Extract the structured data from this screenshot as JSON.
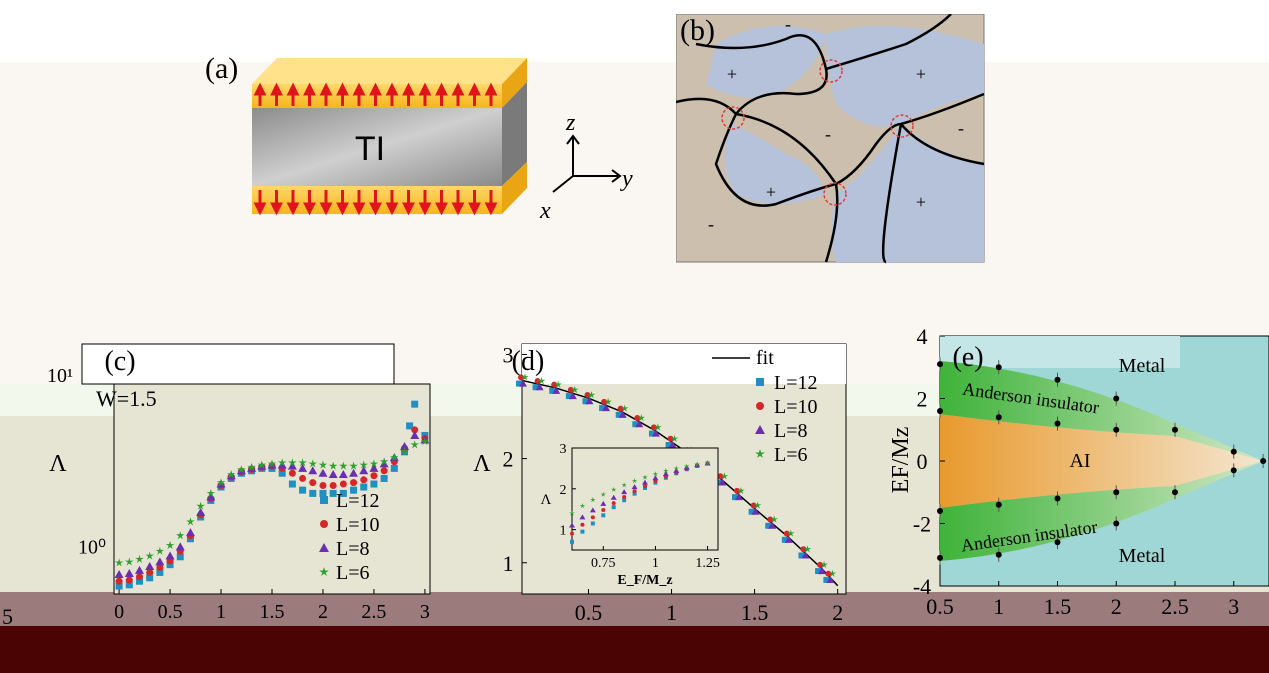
{
  "panel_a": {
    "label": "(a)",
    "block_label": "TI",
    "axes": {
      "z": "z",
      "y": "y",
      "x": "x"
    }
  },
  "panel_b": {
    "label": "(b)",
    "signs": [
      "-",
      "+",
      "+",
      "-",
      "-",
      "+",
      "+",
      "-"
    ]
  },
  "panel_c": {
    "label": "(c)",
    "annotation": "W=1.5",
    "left_clipped_tick": "5",
    "chart_data": {
      "type": "scatter",
      "ylabel": "Λ",
      "yscale": "log",
      "x_ticks": [
        "0",
        "0.5",
        "1",
        "1.5",
        "2",
        "2.5",
        "3"
      ],
      "y_ticks": [
        "10⁰",
        "10¹"
      ],
      "xlim": [
        -0.05,
        3.05
      ],
      "series": [
        {
          "name": "L=12",
          "color": "#1f8fc4",
          "marker": "square",
          "x": [
            0,
            0.1,
            0.2,
            0.3,
            0.4,
            0.5,
            0.6,
            0.7,
            0.8,
            0.9,
            1.0,
            1.1,
            1.2,
            1.3,
            1.4,
            1.5,
            1.6,
            1.7,
            1.8,
            1.9,
            2.0,
            2.1,
            2.2,
            2.3,
            2.4,
            2.5,
            2.6,
            2.7,
            2.8,
            2.85,
            2.9,
            3.0
          ],
          "y": [
            0.56,
            0.57,
            0.6,
            0.63,
            0.68,
            0.76,
            0.85,
            1.1,
            1.5,
            1.9,
            2.3,
            2.6,
            2.8,
            2.9,
            3.0,
            3.0,
            2.8,
            2.4,
            2.2,
            2.1,
            2.1,
            2.1,
            2.1,
            2.2,
            2.3,
            2.4,
            2.6,
            3.0,
            3.8,
            5.5,
            7.5,
            4.8
          ]
        },
        {
          "name": "L=10",
          "color": "#d62728",
          "marker": "circle",
          "x": [
            0,
            0.1,
            0.2,
            0.3,
            0.4,
            0.5,
            0.6,
            0.7,
            0.8,
            0.9,
            1.0,
            1.1,
            1.2,
            1.3,
            1.4,
            1.5,
            1.6,
            1.7,
            1.8,
            1.9,
            2.0,
            2.1,
            2.2,
            2.3,
            2.4,
            2.5,
            2.6,
            2.7,
            2.8,
            2.9,
            3.0
          ],
          "y": [
            0.6,
            0.61,
            0.64,
            0.68,
            0.73,
            0.8,
            0.92,
            1.15,
            1.55,
            1.95,
            2.35,
            2.65,
            2.85,
            2.95,
            3.05,
            3.1,
            3.0,
            2.8,
            2.6,
            2.45,
            2.35,
            2.35,
            2.4,
            2.45,
            2.55,
            2.7,
            2.9,
            3.3,
            4.0,
            5.2,
            4.6
          ]
        },
        {
          "name": "L=8",
          "color": "#6a2fb0",
          "marker": "triangle",
          "x": [
            0,
            0.1,
            0.2,
            0.3,
            0.4,
            0.5,
            0.6,
            0.7,
            0.8,
            0.9,
            1.0,
            1.1,
            1.2,
            1.3,
            1.4,
            1.5,
            1.6,
            1.7,
            1.8,
            1.9,
            2.0,
            2.1,
            2.2,
            2.3,
            2.4,
            2.5,
            2.6,
            2.7,
            2.8,
            2.9,
            3.0
          ],
          "y": [
            0.66,
            0.67,
            0.7,
            0.74,
            0.79,
            0.86,
            0.98,
            1.2,
            1.6,
            2.0,
            2.4,
            2.7,
            2.9,
            3.0,
            3.1,
            3.15,
            3.15,
            3.1,
            3.0,
            2.9,
            2.8,
            2.75,
            2.75,
            2.8,
            2.9,
            3.0,
            3.2,
            3.5,
            4.1,
            4.8,
            4.5
          ]
        },
        {
          "name": "L=6",
          "color": "#2ca02c",
          "marker": "star",
          "x": [
            0,
            0.1,
            0.2,
            0.3,
            0.4,
            0.5,
            0.6,
            0.7,
            0.8,
            0.9,
            1.0,
            1.1,
            1.2,
            1.3,
            1.4,
            1.5,
            1.6,
            1.7,
            1.8,
            1.9,
            2.0,
            2.1,
            2.2,
            2.3,
            2.4,
            2.5,
            2.6,
            2.7,
            2.8,
            2.9,
            3.0
          ],
          "y": [
            0.78,
            0.79,
            0.82,
            0.86,
            0.92,
            1.0,
            1.15,
            1.4,
            1.75,
            2.1,
            2.45,
            2.75,
            2.95,
            3.05,
            3.15,
            3.2,
            3.25,
            3.25,
            3.25,
            3.2,
            3.15,
            3.1,
            3.1,
            3.1,
            3.15,
            3.2,
            3.3,
            3.5,
            3.8,
            4.2,
            4.4
          ]
        }
      ]
    }
  },
  "panel_d": {
    "label": "(d)",
    "chart_data": {
      "type": "scatter",
      "ylabel": "Λ",
      "xlim": [
        0.1,
        2.05
      ],
      "ylim": [
        0.7,
        3.1
      ],
      "x_ticks": [
        "0.5",
        "1",
        "1.5",
        "2"
      ],
      "y_ticks": [
        "1",
        "2",
        "3"
      ],
      "fit_name": "fit",
      "fit": {
        "x": [
          0.1,
          0.3,
          0.5,
          0.7,
          0.9,
          1.1,
          1.3,
          1.5,
          1.7,
          1.9,
          2.0
        ],
        "y": [
          2.75,
          2.68,
          2.58,
          2.45,
          2.27,
          2.05,
          1.8,
          1.52,
          1.25,
          0.95,
          0.78
        ]
      },
      "series": [
        {
          "name": "L=12",
          "color": "#1f8fc4",
          "marker": "square"
        },
        {
          "name": "L=10",
          "color": "#d62728",
          "marker": "circle"
        },
        {
          "name": "L=8",
          "color": "#6a2fb0",
          "marker": "triangle"
        },
        {
          "name": "L=6",
          "color": "#2ca02c",
          "marker": "star"
        }
      ],
      "points_x": [
        0.1,
        0.2,
        0.3,
        0.4,
        0.5,
        0.6,
        0.7,
        0.8,
        0.9,
        1.0,
        1.1,
        1.2,
        1.3,
        1.4,
        1.5,
        1.6,
        1.7,
        1.8,
        1.9,
        1.95
      ],
      "inset": {
        "xlabel": "E_F/M_z",
        "ylabel": "Λ",
        "xlim": [
          0.6,
          1.3
        ],
        "ylim": [
          0.5,
          3.0
        ],
        "x_ticks": [
          "0.75",
          "1",
          "1.25"
        ],
        "y_ticks": [
          "1",
          "2",
          "3"
        ],
        "x": [
          0.6,
          0.65,
          0.7,
          0.75,
          0.8,
          0.85,
          0.9,
          0.95,
          1.0,
          1.05,
          1.1,
          1.15,
          1.2,
          1.25
        ],
        "series": [
          {
            "name": "L=12",
            "color": "#1f8fc4",
            "marker": "square",
            "y": [
              0.7,
              0.95,
              1.15,
              1.35,
              1.55,
              1.72,
              1.88,
              2.02,
              2.15,
              2.27,
              2.38,
              2.48,
              2.56,
              2.62
            ]
          },
          {
            "name": "L=10",
            "color": "#d62728",
            "marker": "circle",
            "y": [
              0.9,
              1.12,
              1.3,
              1.48,
              1.65,
              1.8,
              1.94,
              2.07,
              2.19,
              2.3,
              2.4,
              2.49,
              2.57,
              2.62
            ]
          },
          {
            "name": "L=8",
            "color": "#6a2fb0",
            "marker": "triangle",
            "y": [
              1.1,
              1.3,
              1.47,
              1.63,
              1.78,
              1.92,
              2.04,
              2.15,
              2.26,
              2.36,
              2.44,
              2.52,
              2.58,
              2.62
            ]
          },
          {
            "name": "L=6",
            "color": "#2ca02c",
            "marker": "star",
            "y": [
              1.4,
              1.58,
              1.73,
              1.86,
              1.98,
              2.09,
              2.19,
              2.28,
              2.36,
              2.44,
              2.5,
              2.55,
              2.6,
              2.63
            ]
          }
        ]
      }
    }
  },
  "panel_e": {
    "label": "(e)",
    "regions": {
      "metal_top": "Metal",
      "metal_bottom": "Metal",
      "ai": "AI",
      "anderson_top": "Anderson insulator",
      "anderson_bottom": "Anderson insulator"
    },
    "chart_data": {
      "type": "scatter",
      "ylabel": "E_F/M_z",
      "xlim": [
        0.5,
        3.3
      ],
      "ylim": [
        -4,
        4
      ],
      "x_ticks": [
        "0.5",
        "1",
        "1.5",
        "2",
        "2.5",
        "3"
      ],
      "y_ticks": [
        "-4",
        "-2",
        "0",
        "2",
        "4"
      ],
      "points": [
        [
          0.5,
          3.1
        ],
        [
          0.5,
          1.6
        ],
        [
          0.5,
          -1.6
        ],
        [
          0.5,
          -3.1
        ],
        [
          1.0,
          3.0
        ],
        [
          1.0,
          1.4
        ],
        [
          1.0,
          -1.4
        ],
        [
          1.0,
          -3.0
        ],
        [
          1.5,
          2.6
        ],
        [
          1.5,
          1.2
        ],
        [
          1.5,
          -1.2
        ],
        [
          1.5,
          -2.6
        ],
        [
          2.0,
          2.0
        ],
        [
          2.0,
          1.0
        ],
        [
          2.0,
          -1.0
        ],
        [
          2.0,
          -2.0
        ],
        [
          2.5,
          1.0
        ],
        [
          2.5,
          -1.0
        ],
        [
          3.0,
          0.3
        ],
        [
          3.0,
          -0.3
        ],
        [
          3.25,
          0.0
        ]
      ]
    }
  },
  "colors": {
    "band_top": "#faf6f1",
    "band_mid": "#e8e7d6",
    "band_bottom": "#9b7b7b",
    "band_footer": "#4a0404"
  }
}
